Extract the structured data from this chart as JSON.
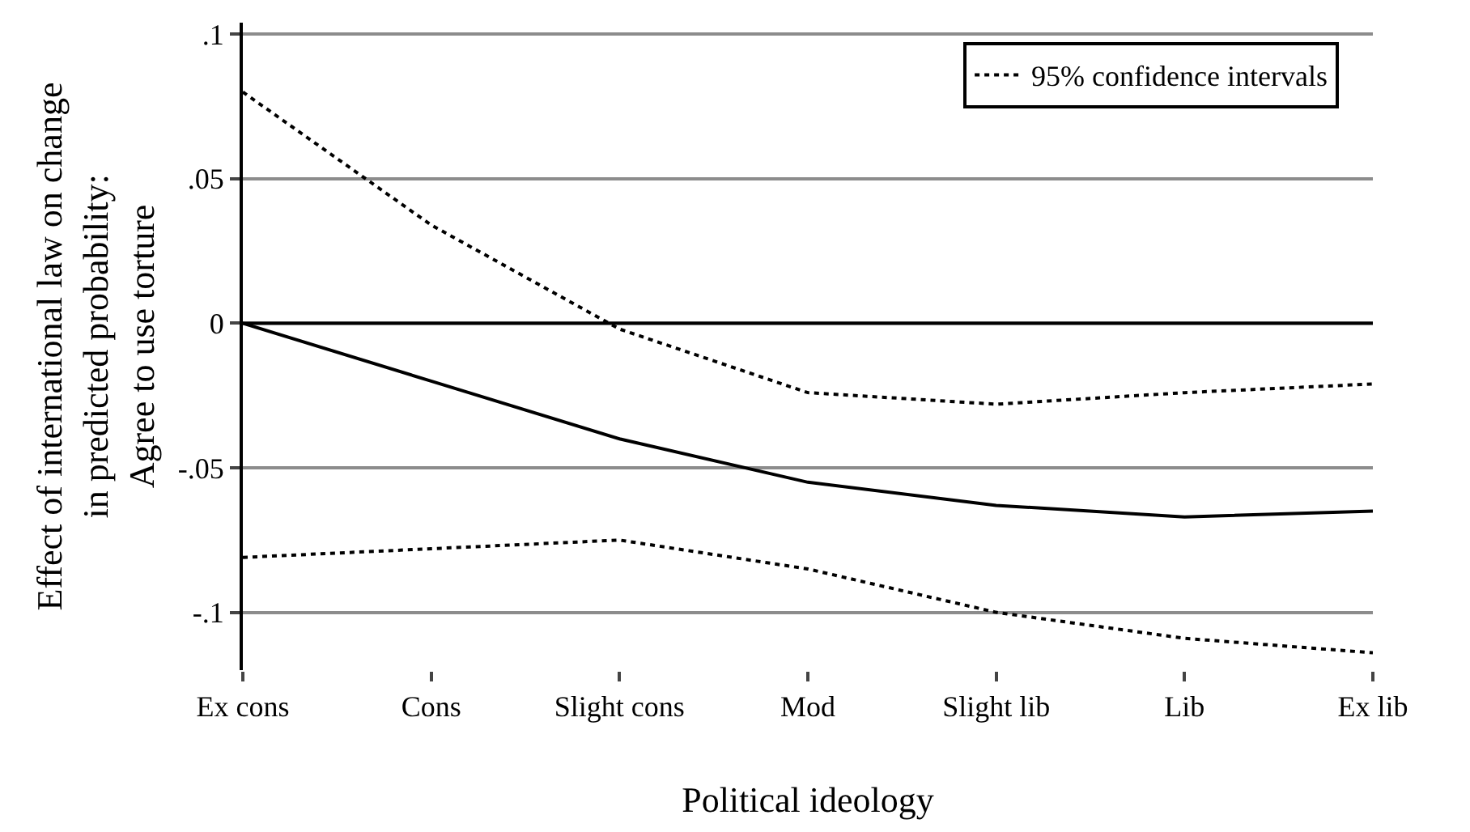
{
  "chart_data": {
    "type": "line",
    "xlabel": "Political ideology",
    "ylabel": "Effect of international law on change\nin predicted probability:\nAgree to use torture",
    "categories": [
      "Ex cons",
      "Cons",
      "Slight cons",
      "Mod",
      "Slight lib",
      "Lib",
      "Ex lib"
    ],
    "series": [
      {
        "color": "#000000",
        "line_style": "solid",
        "values": [
          0,
          -0.02,
          -0.04,
          -0.055,
          -0.063,
          -0.067,
          -0.065
        ]
      },
      {
        "name": "95% confidence intervals",
        "color": "#000000",
        "line_style": "dotted",
        "values": [
          0.08,
          0.034,
          -0.002,
          -0.024,
          -0.028,
          -0.024,
          -0.021
        ]
      },
      {
        "color": "#000000",
        "line_style": "dotted",
        "values": [
          -0.081,
          -0.078,
          -0.075,
          -0.085,
          -0.1,
          -0.109,
          -0.114
        ]
      }
    ],
    "ylim": [
      -0.12,
      0.104
    ],
    "yticks": [
      {
        "value": 0.1,
        "label": ".1"
      },
      {
        "value": 0.05,
        "label": ".05"
      },
      0,
      {
        "value": -0.05,
        "label": "-.05"
      },
      {
        "value": -0.1,
        "label": "-.1"
      }
    ],
    "ref_lines": [
      {
        "axis": "y",
        "value": 0,
        "color": "#000000"
      }
    ],
    "grid": "y",
    "legend": "top right",
    "marker": "none"
  }
}
